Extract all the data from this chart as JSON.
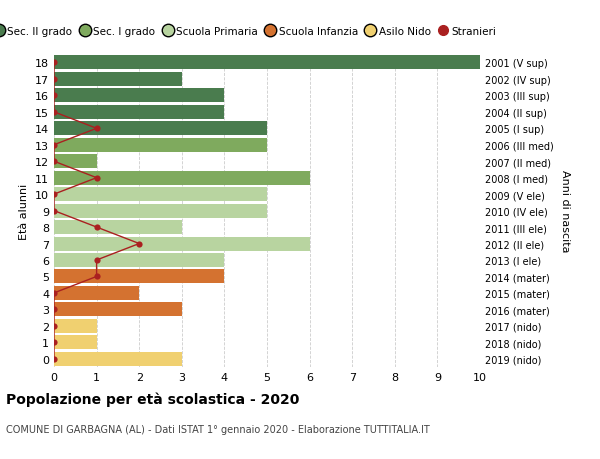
{
  "ages": [
    18,
    17,
    16,
    15,
    14,
    13,
    12,
    11,
    10,
    9,
    8,
    7,
    6,
    5,
    4,
    3,
    2,
    1,
    0
  ],
  "years": [
    "2001 (V sup)",
    "2002 (IV sup)",
    "2003 (III sup)",
    "2004 (II sup)",
    "2005 (I sup)",
    "2006 (III med)",
    "2007 (II med)",
    "2008 (I med)",
    "2009 (V ele)",
    "2010 (IV ele)",
    "2011 (III ele)",
    "2012 (II ele)",
    "2013 (I ele)",
    "2014 (mater)",
    "2015 (mater)",
    "2016 (mater)",
    "2017 (nido)",
    "2018 (nido)",
    "2019 (nido)"
  ],
  "bar_values": [
    10,
    3,
    4,
    4,
    5,
    5,
    1,
    6,
    5,
    5,
    3,
    6,
    4,
    4,
    2,
    3,
    1,
    1,
    3
  ],
  "bar_colors": [
    "#4a7c4e",
    "#4a7c4e",
    "#4a7c4e",
    "#4a7c4e",
    "#4a7c4e",
    "#7faa5e",
    "#7faa5e",
    "#7faa5e",
    "#b8d4a0",
    "#b8d4a0",
    "#b8d4a0",
    "#b8d4a0",
    "#b8d4a0",
    "#d47230",
    "#d47230",
    "#d47230",
    "#f0d070",
    "#f0d070",
    "#f0d070"
  ],
  "stranieri_values": [
    0,
    0,
    0,
    0,
    1,
    0,
    0,
    1,
    0,
    0,
    1,
    2,
    1,
    1,
    0,
    0,
    0,
    0,
    0
  ],
  "stranieri_color": "#aa2020",
  "xlim": [
    0,
    10
  ],
  "ylabel_left": "Età alunni",
  "ylabel_right": "Anni di nascita",
  "title": "Popolazione per età scolastica - 2020",
  "subtitle": "COMUNE DI GARBAGNA (AL) - Dati ISTAT 1° gennaio 2020 - Elaborazione TUTTITALIA.IT",
  "legend_labels": [
    "Sec. II grado",
    "Sec. I grado",
    "Scuola Primaria",
    "Scuola Infanzia",
    "Asilo Nido",
    "Stranieri"
  ],
  "legend_colors": [
    "#4a7c4e",
    "#7faa5e",
    "#b8d4a0",
    "#d47230",
    "#f0d070",
    "#aa2020"
  ],
  "bg_color": "#ffffff",
  "grid_color": "#cccccc"
}
